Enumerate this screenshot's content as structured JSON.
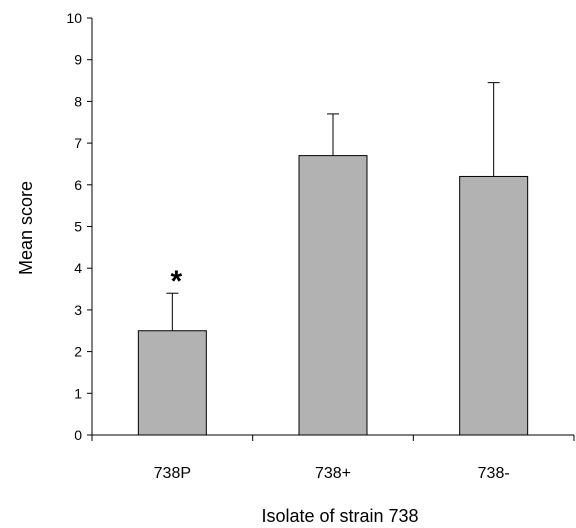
{
  "chart_data": {
    "type": "bar",
    "title": "",
    "xlabel": "Isolate of strain 738",
    "ylabel": "Mean score",
    "ylim": [
      0,
      10
    ],
    "yticks": [
      0,
      1,
      2,
      3,
      4,
      5,
      6,
      7,
      8,
      9,
      10
    ],
    "categories": [
      "738P",
      "738+",
      "738-"
    ],
    "values": [
      2.5,
      6.7,
      6.2
    ],
    "error_upper": [
      0.9,
      1.0,
      2.25
    ],
    "annotations": [
      {
        "category": "738P",
        "text": "*"
      }
    ],
    "bar_color": "#b2b2b2",
    "bar_edge_color": "#000000",
    "grid": false,
    "legend": "none"
  }
}
